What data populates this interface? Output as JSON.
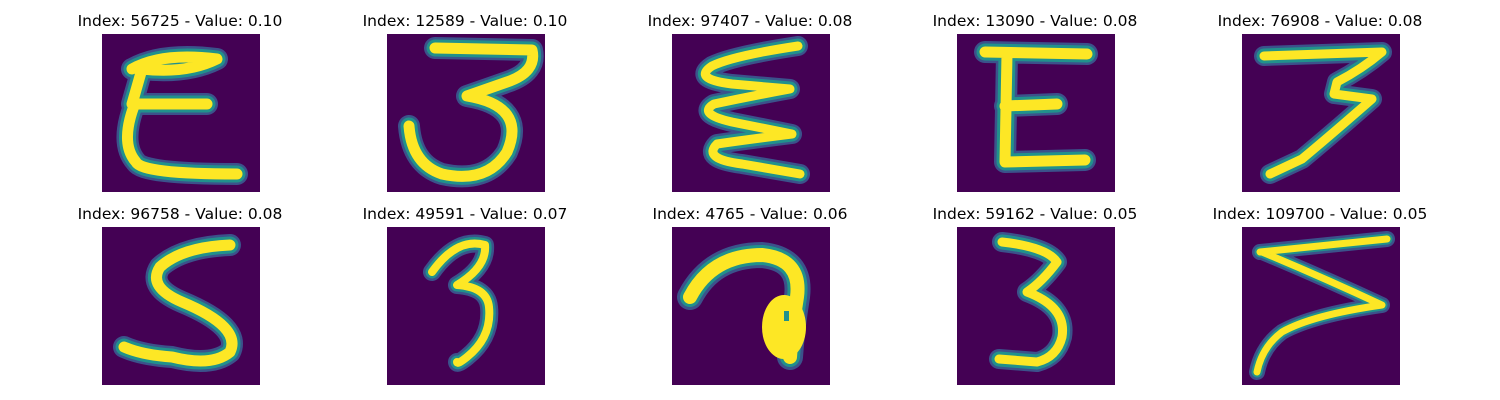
{
  "colors": {
    "background": "#440154",
    "mid": "#21918c",
    "edge": "#3b528b",
    "stroke": "#fde725"
  },
  "panels": [
    {
      "title": "Index: 56725 - Value: 0.10",
      "glyph": "E-upper"
    },
    {
      "title": "Index: 12589 - Value: 0.10",
      "glyph": "3-loop"
    },
    {
      "title": "Index: 97407 - Value: 0.08",
      "glyph": "E-wavy"
    },
    {
      "title": "Index: 13090 - Value: 0.08",
      "glyph": "E-block"
    },
    {
      "title": "Index: 76908 - Value: 0.08",
      "glyph": "3-flat-top"
    },
    {
      "title": "Index: 96758 - Value: 0.08",
      "glyph": "5-curve"
    },
    {
      "title": "Index: 49591 - Value: 0.07",
      "glyph": "3-small"
    },
    {
      "title": "Index: 4765 - Value: 0.06",
      "glyph": "hook-blob"
    },
    {
      "title": "Index: 59162 - Value: 0.05",
      "glyph": "3-narrow"
    },
    {
      "title": "Index: 109700 - Value: 0.05",
      "glyph": "Z-slant"
    }
  ]
}
